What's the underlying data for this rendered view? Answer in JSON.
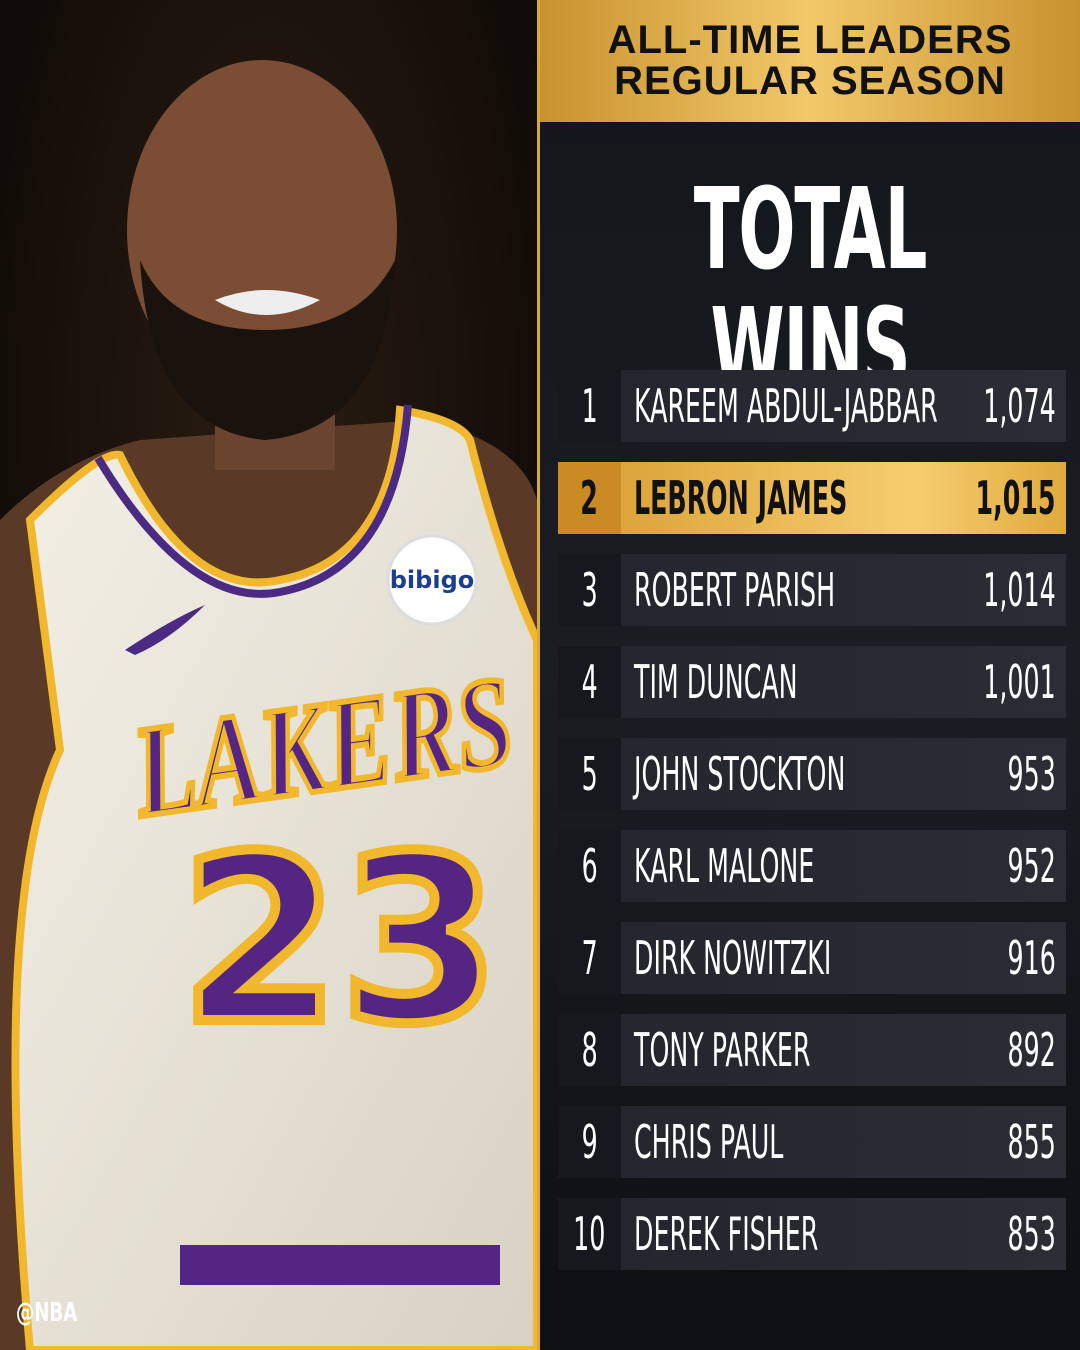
{
  "header": {
    "title_lines": [
      "ALL-TIME LEADERS",
      "REGULAR SEASON"
    ]
  },
  "subtitle": "TOTAL WINS",
  "photo": {
    "team": "LAKERS",
    "number": "23",
    "sponsor": "bibigo"
  },
  "table": {
    "highlight_row": 1,
    "rows": [
      [
        "1",
        "KAREEM ABDUL-JABBAR",
        "1,074"
      ],
      [
        "2",
        "LEBRON JAMES",
        "1,015"
      ],
      [
        "3",
        "ROBERT PARISH",
        "1,014"
      ],
      [
        "4",
        "TIM DUNCAN",
        "1,001"
      ],
      [
        "5",
        "JOHN STOCKTON",
        "953"
      ],
      [
        "6",
        "KARL MALONE",
        "952"
      ],
      [
        "7",
        "DIRK NOWITZKI",
        "916"
      ],
      [
        "8",
        "TONY PARKER",
        "892"
      ],
      [
        "9",
        "CHRIS PAUL",
        "855"
      ],
      [
        "10",
        "DEREK FISHER",
        "853"
      ]
    ]
  },
  "watermark": "@NBA"
}
